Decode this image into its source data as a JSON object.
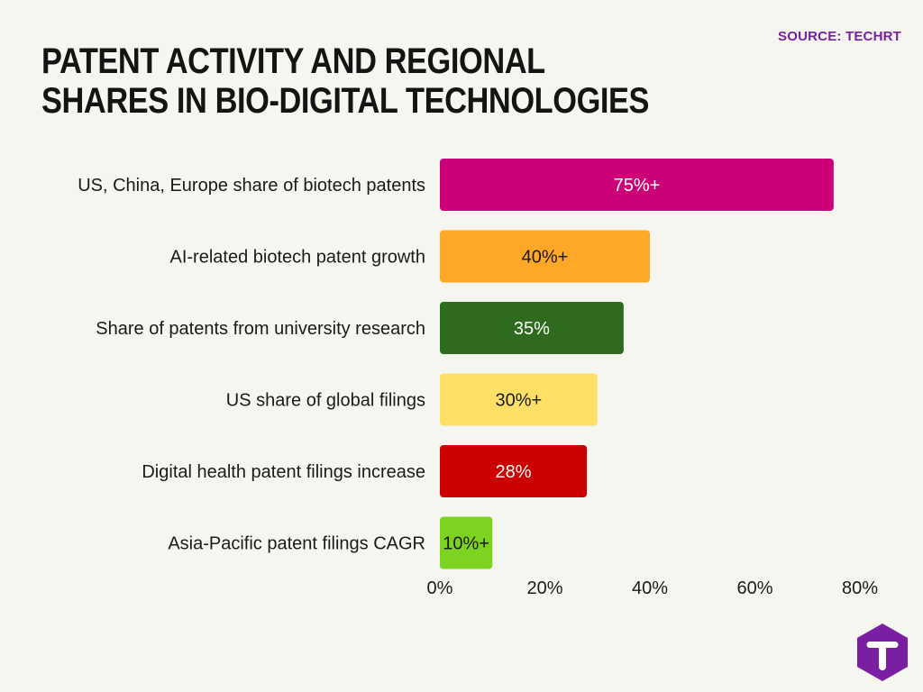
{
  "source": "SOURCE: TECHRT",
  "chart_data": {
    "type": "bar",
    "orientation": "horizontal",
    "title": "PATENT ACTIVITY AND REGIONAL SHARES IN BIO-DIGITAL TECHNOLOGIES",
    "categories": [
      "US, China, Europe share of biotech patents",
      "AI-related biotech patent growth",
      "Share of patents from university research",
      "US share of global filings",
      "Digital health patent filings increase",
      "Asia-Pacific patent filings CAGR"
    ],
    "values": [
      75,
      40,
      35,
      30,
      28,
      10
    ],
    "data_labels": [
      "75%+",
      "40%+",
      "35%",
      "30%+",
      "28%",
      "10%+"
    ],
    "colors": [
      "#cc0077",
      "#ffa726",
      "#2e6b1f",
      "#ffe066",
      "#cc0000",
      "#7ed321"
    ],
    "label_colors": [
      "#ffffff",
      "#1a1a1a",
      "#ffffff",
      "#1a1a1a",
      "#ffffff",
      "#1a1a1a"
    ],
    "xlim": [
      0,
      80
    ],
    "xticks": [
      "0%",
      "20%",
      "40%",
      "60%",
      "80%"
    ],
    "tick_values": [
      0,
      20,
      40,
      60,
      80
    ],
    "grid": false,
    "legend": "none"
  },
  "logo": {
    "icon": "t-logo-icon",
    "color": "#7b1fa2",
    "letter": "T"
  }
}
